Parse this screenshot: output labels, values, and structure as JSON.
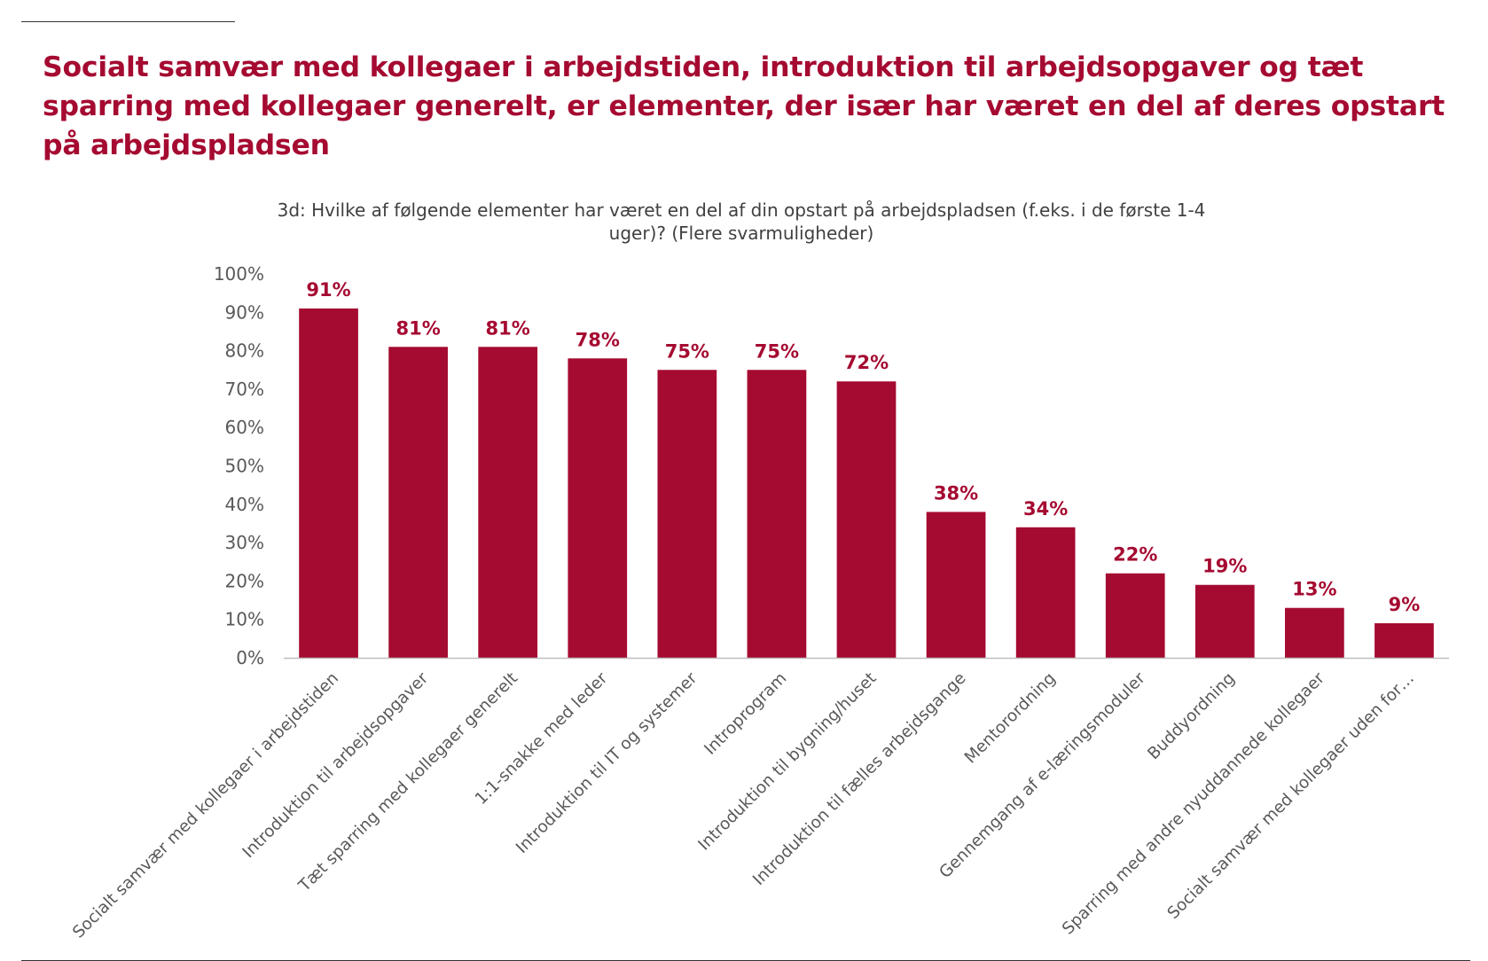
{
  "slide": {
    "headline": "Socialt samvær med kollegaer i arbejdstiden, introduktion til arbejdsopgaver og tæt sparring med kollegaer generelt, er elementer, der især har været en del af deres opstart på arbejdspladsen"
  },
  "colors": {
    "accent": "#a50a31",
    "axis": "#bfbfbf",
    "text": "#595959"
  },
  "chart_data": {
    "type": "bar",
    "title_lines": [
      "3d: Hvilke af følgende elementer har været en del af din opstart på arbejdspladsen (f.eks. i de første 1-4",
      "uger)? (Flere svarmuligheder)"
    ],
    "categories": [
      "Socialt samvær med kollegaer i arbejdstiden",
      "Introduktion til arbejdsopgaver",
      "Tæt sparring med kollegaer generelt",
      "1:1-snakke med leder",
      "Introduktion til IT og systemer",
      "Introprogram",
      "Introduktion til bygning/huset",
      "Introduktion til fælles arbejdsgange",
      "Mentorordning",
      "Gennemgang af e-læringsmoduler",
      "Buddyordning",
      "Sparring med andre nyuddannede kollegaer",
      "Socialt samvær med kollegaer uden for…"
    ],
    "values": [
      91,
      81,
      81,
      78,
      75,
      75,
      72,
      38,
      34,
      22,
      19,
      13,
      9
    ],
    "value_labels": [
      "91%",
      "81%",
      "81%",
      "78%",
      "75%",
      "75%",
      "72%",
      "38%",
      "34%",
      "22%",
      "19%",
      "13%",
      "9%"
    ],
    "y_ticks": [
      "0%",
      "10%",
      "20%",
      "30%",
      "40%",
      "50%",
      "60%",
      "70%",
      "80%",
      "90%",
      "100%"
    ],
    "ylim": [
      0,
      100
    ],
    "grid": false,
    "legend": "none"
  }
}
